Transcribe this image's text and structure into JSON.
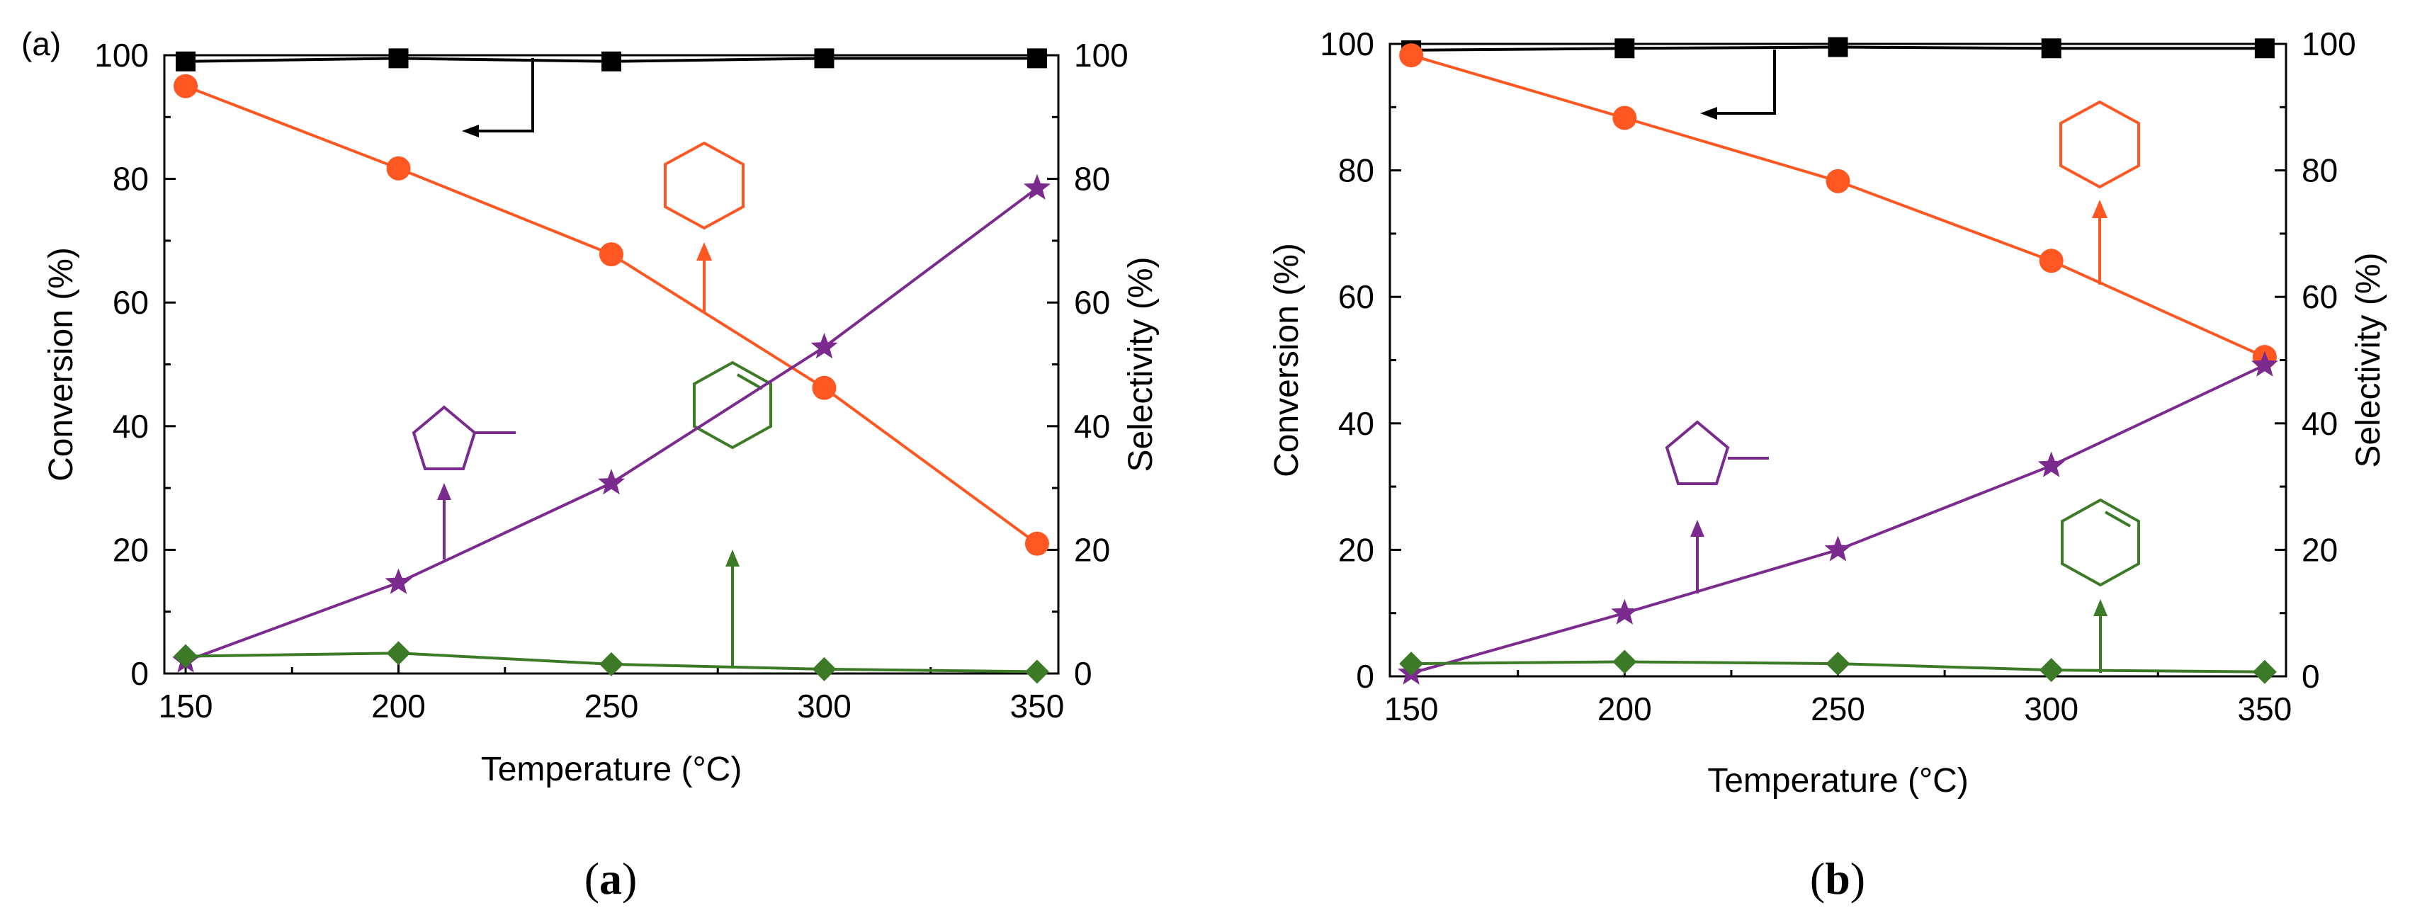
{
  "colors": {
    "conversion": "#000000",
    "cyclohexane": "#ff5722",
    "methylcyclopentane": "#7b2a8e",
    "cyclohexene": "#3c7a28"
  },
  "chart_data": [
    {
      "type": "line",
      "panel_label": "(a)",
      "caption_open": "(",
      "caption_letter": "a",
      "caption_close": ")",
      "xlabel": "Temperature (°C)",
      "ylabel_left": "Conversion (%)",
      "ylabel_right": "Selectivity (%)",
      "x": [
        150,
        200,
        250,
        300,
        350
      ],
      "xlim": [
        145,
        355
      ],
      "ylim": [
        0,
        100
      ],
      "x_ticks": [
        "150",
        "200",
        "250",
        "300",
        "350"
      ],
      "y_ticks": [
        "0",
        "20",
        "40",
        "60",
        "80",
        "100"
      ],
      "series": [
        {
          "name": "Conversion",
          "axis": "left",
          "marker": "square",
          "color_key": "conversion",
          "values": [
            99,
            99.5,
            99,
            99.5,
            99.5
          ]
        },
        {
          "name": "Cyclohexane selectivity",
          "axis": "right",
          "marker": "circle",
          "color_key": "cyclohexane",
          "values": [
            95,
            81.7,
            67.8,
            46.2,
            21
          ]
        },
        {
          "name": "Methylcyclopentane selectivity",
          "axis": "right",
          "marker": "star",
          "color_key": "methylcyclopentane",
          "values": [
            2,
            14.7,
            30.8,
            52.8,
            78.5
          ]
        },
        {
          "name": "Cyclohexene selectivity",
          "axis": "right",
          "marker": "diamond",
          "color_key": "cyclohexene",
          "values": [
            2.8,
            3.3,
            1.5,
            0.7,
            0.3
          ]
        }
      ]
    },
    {
      "type": "line",
      "panel_label": "",
      "caption_open": "(",
      "caption_letter": "b",
      "caption_close": ")",
      "xlabel": "Temperature (°C)",
      "ylabel_left": "Conversion (%)",
      "ylabel_right": "Selectivity (%)",
      "x": [
        150,
        200,
        250,
        300,
        350
      ],
      "xlim": [
        145,
        355
      ],
      "ylim": [
        0,
        100
      ],
      "x_ticks": [
        "150",
        "200",
        "250",
        "300",
        "350"
      ],
      "y_ticks": [
        "0",
        "20",
        "40",
        "60",
        "80",
        "100"
      ],
      "series": [
        {
          "name": "Conversion",
          "axis": "left",
          "marker": "square",
          "color_key": "conversion",
          "values": [
            99,
            99.3,
            99.5,
            99.3,
            99.3
          ]
        },
        {
          "name": "Cyclohexane selectivity",
          "axis": "right",
          "marker": "circle",
          "color_key": "cyclohexane",
          "values": [
            98.2,
            88.3,
            78.3,
            65.7,
            50.5
          ]
        },
        {
          "name": "Methylcyclopentane selectivity",
          "axis": "right",
          "marker": "star",
          "color_key": "methylcyclopentane",
          "values": [
            0.5,
            10,
            20,
            33.3,
            49.2
          ]
        },
        {
          "name": "Cyclohexene selectivity",
          "axis": "right",
          "marker": "diamond",
          "color_key": "cyclohexene",
          "values": [
            2,
            2.3,
            2,
            1,
            0.7
          ]
        }
      ]
    }
  ]
}
